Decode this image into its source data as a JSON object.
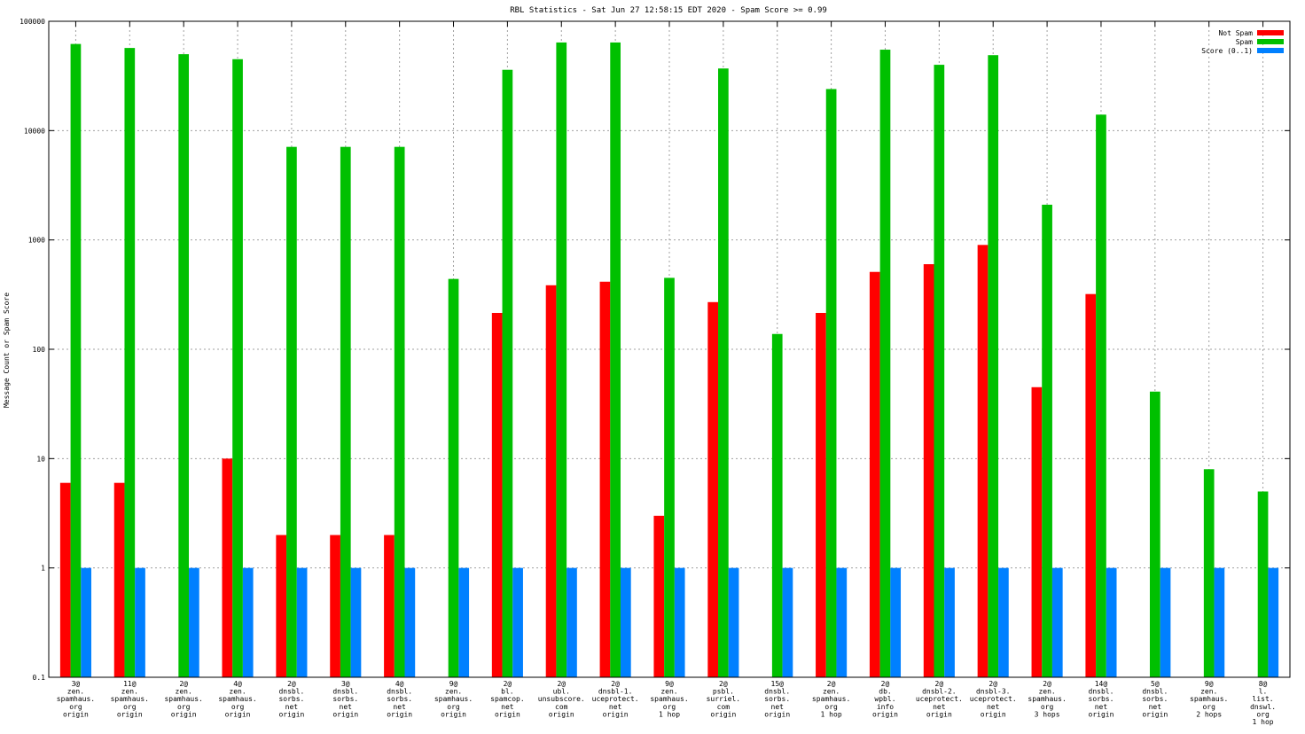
{
  "chart_data": {
    "type": "bar",
    "title": "RBL Statistics - Sat Jun 27 12:58:15 EDT 2020 - Spam Score >= 0.99",
    "ylabel": "Message Count or Spam Score",
    "xlabel": "",
    "yscale": "log",
    "ylim": [
      0.1,
      100000
    ],
    "yticks": [
      "0.1",
      "1",
      "10",
      "100",
      "1000",
      "10000",
      "100000"
    ],
    "grid": true,
    "legend_position": "top-right",
    "categories": [
      [
        "3@",
        "zen.",
        "spamhaus.",
        "org",
        "origin"
      ],
      [
        "11@",
        "zen.",
        "spamhaus.",
        "org",
        "origin"
      ],
      [
        "2@",
        "zen.",
        "spamhaus.",
        "org",
        "origin"
      ],
      [
        "4@",
        "zen.",
        "spamhaus.",
        "org",
        "origin"
      ],
      [
        "2@",
        "dnsbl.",
        "sorbs.",
        "net",
        "origin"
      ],
      [
        "3@",
        "dnsbl.",
        "sorbs.",
        "net",
        "origin"
      ],
      [
        "4@",
        "dnsbl.",
        "sorbs.",
        "net",
        "origin"
      ],
      [
        "9@",
        "zen.",
        "spamhaus.",
        "org",
        "origin"
      ],
      [
        "2@",
        "bl.",
        "spamcop.",
        "net",
        "origin"
      ],
      [
        "2@",
        "ubl.",
        "unsubscore.",
        "com",
        "origin"
      ],
      [
        "2@",
        "dnsbl-1.",
        "uceprotect.",
        "net",
        "origin"
      ],
      [
        "9@",
        "zen.",
        "spamhaus.",
        "org",
        "1 hop"
      ],
      [
        "2@",
        "psbl.",
        "surriel.",
        "com",
        "origin"
      ],
      [
        "15@",
        "dnsbl.",
        "sorbs.",
        "net",
        "origin"
      ],
      [
        "2@",
        "zen.",
        "spamhaus.",
        "org",
        "1 hop"
      ],
      [
        "2@",
        "db.",
        "wpbl.",
        "info",
        "origin"
      ],
      [
        "2@",
        "dnsbl-2.",
        "uceprotect.",
        "net",
        "origin"
      ],
      [
        "2@",
        "dnsbl-3.",
        "uceprotect.",
        "net",
        "origin"
      ],
      [
        "2@",
        "zen.",
        "spamhaus.",
        "org",
        "3 hops"
      ],
      [
        "14@",
        "dnsbl.",
        "sorbs.",
        "net",
        "origin"
      ],
      [
        "5@",
        "dnsbl.",
        "sorbs.",
        "net",
        "origin"
      ],
      [
        "9@",
        "zen.",
        "spamhaus.",
        "org",
        "2 hops"
      ],
      [
        "8@",
        "l.",
        "list.",
        "dnswl.",
        "org",
        "1 hop"
      ]
    ],
    "series": [
      {
        "name": "Not Spam",
        "color": "#ff0000",
        "values": [
          6,
          6,
          null,
          10,
          2,
          2,
          2,
          null,
          215,
          385,
          415,
          3,
          270,
          null,
          215,
          510,
          600,
          900,
          45,
          320,
          null,
          null,
          null
        ]
      },
      {
        "name": "Spam",
        "color": "#00c000",
        "values": [
          62000,
          57000,
          50000,
          45000,
          7100,
          7100,
          7100,
          440,
          36000,
          64000,
          64000,
          450,
          37000,
          138,
          24000,
          55000,
          40000,
          49000,
          2100,
          14000,
          41,
          8,
          5
        ]
      },
      {
        "name": "Score (0..1)",
        "color": "#0080ff",
        "values": [
          1,
          1,
          1,
          1,
          1,
          1,
          1,
          1,
          1,
          1,
          1,
          1,
          1,
          1,
          1,
          1,
          1,
          1,
          1,
          1,
          1,
          1,
          1
        ]
      }
    ]
  }
}
